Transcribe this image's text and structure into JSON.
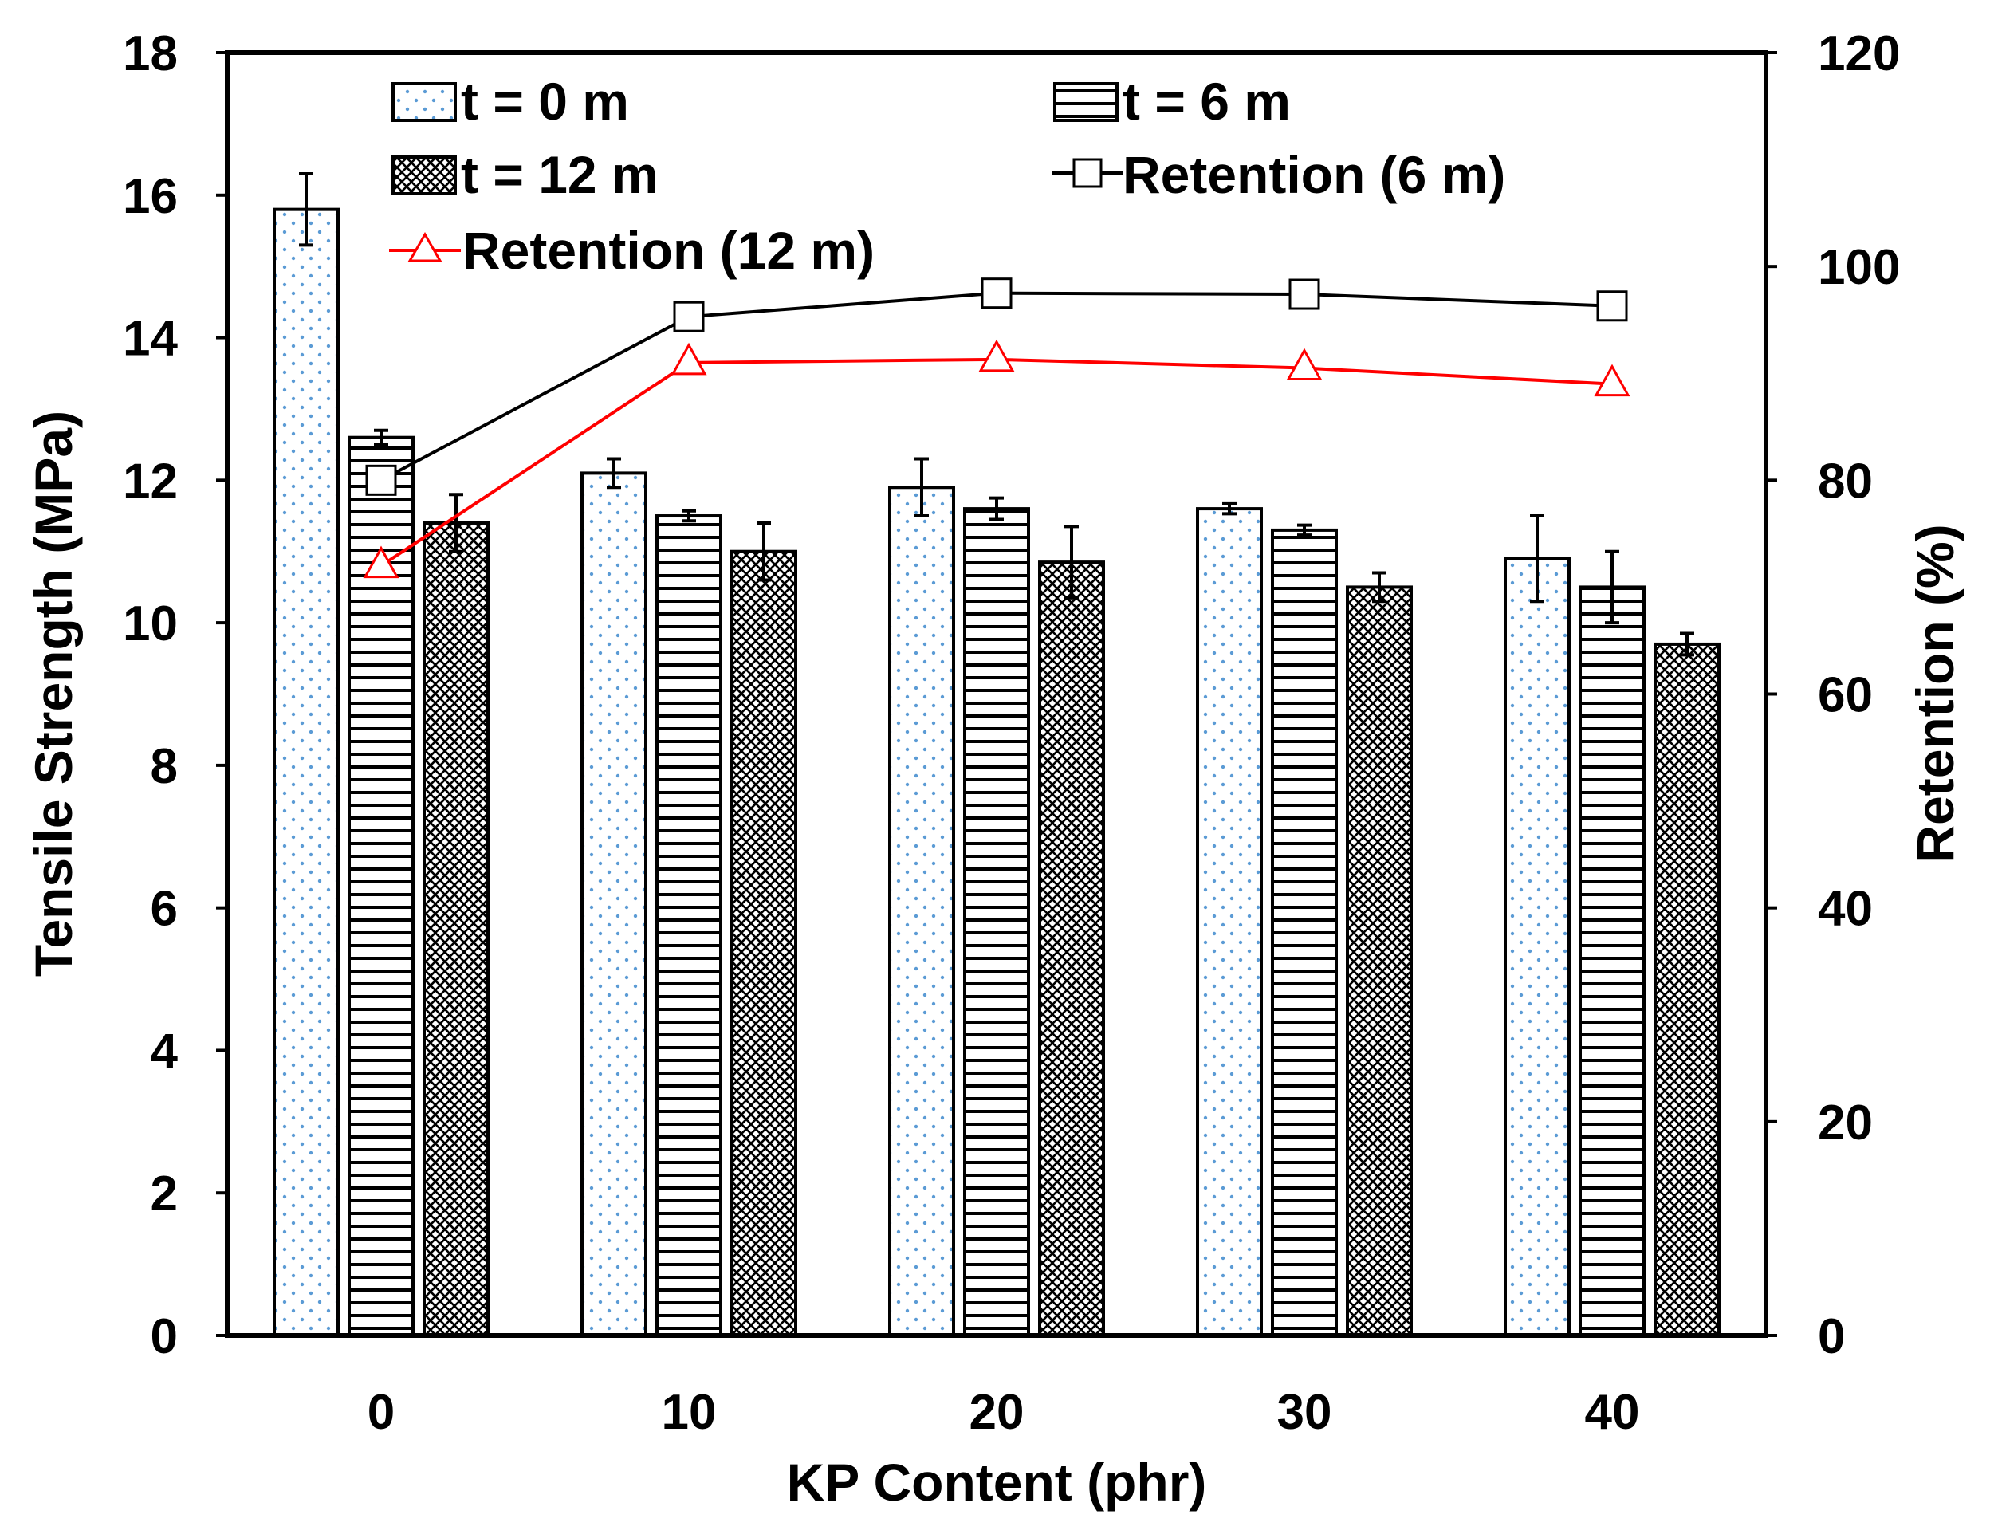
{
  "chart_data": {
    "type": "bar",
    "title": "",
    "xlabel": "KP Content (phr)",
    "ylabel": "Tensile Strength (MPa)",
    "y2label": "Retention (%)",
    "categories": [
      "0",
      "10",
      "20",
      "30",
      "40"
    ],
    "ylim": [
      0,
      18
    ],
    "y2lim": [
      0,
      120
    ],
    "yticks": [
      "0",
      "2",
      "4",
      "6",
      "8",
      "10",
      "12",
      "14",
      "16",
      "18"
    ],
    "y2ticks": [
      "0",
      "20",
      "40",
      "60",
      "80",
      "100",
      "120"
    ],
    "legend_position": "top",
    "series": [
      {
        "name": "t = 0 m",
        "kind": "bar",
        "pattern": "dots",
        "values": [
          15.8,
          12.1,
          11.9,
          11.6,
          10.9
        ],
        "errors": [
          0.5,
          0.2,
          0.4,
          0.07,
          0.6
        ]
      },
      {
        "name": "t = 6 m",
        "kind": "bar",
        "pattern": "hlines",
        "values": [
          12.6,
          11.5,
          11.6,
          11.3,
          10.5
        ],
        "errors": [
          0.1,
          0.07,
          0.15,
          0.07,
          0.5
        ]
      },
      {
        "name": "t = 12 m",
        "kind": "bar",
        "pattern": "crosshatch",
        "values": [
          11.4,
          11.0,
          10.85,
          10.5,
          9.7
        ],
        "errors": [
          0.4,
          0.4,
          0.5,
          0.2,
          0.15
        ]
      },
      {
        "name": "Retention (6 m)",
        "kind": "line",
        "axis": "right",
        "color": "#000000",
        "marker": "square",
        "values": [
          80,
          95.3,
          97.5,
          97.4,
          96.3
        ]
      },
      {
        "name": "Retention (12 m)",
        "kind": "line",
        "axis": "right",
        "color": "#ff0000",
        "marker": "triangle",
        "values": [
          72,
          91,
          91.3,
          90.5,
          89
        ]
      }
    ]
  }
}
